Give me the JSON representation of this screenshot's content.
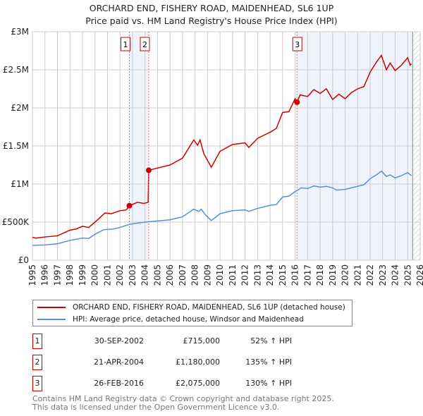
{
  "chart_data": {
    "type": "line",
    "title": "ORCHARD END, FISHERY ROAD, MAIDENHEAD, SL6 1UP",
    "subtitle": "Price paid vs. HM Land Registry's House Price Index (HPI)",
    "xlim": [
      1995,
      2026
    ],
    "ylim": [
      0,
      3000000
    ],
    "yticks": [
      {
        "v": 0,
        "label": "£0"
      },
      {
        "v": 500000,
        "label": "£500K"
      },
      {
        "v": 1000000,
        "label": "£1M"
      },
      {
        "v": 1500000,
        "label": "£1.5M"
      },
      {
        "v": 2000000,
        "label": "£2M"
      },
      {
        "v": 2500000,
        "label": "£2.5M"
      },
      {
        "v": 3000000,
        "label": "£3M"
      }
    ],
    "xticks": [
      "1995",
      "1996",
      "1997",
      "1998",
      "1999",
      "2000",
      "2001",
      "2002",
      "2003",
      "2004",
      "2005",
      "2006",
      "2007",
      "2008",
      "2009",
      "2010",
      "2011",
      "2012",
      "2013",
      "2014",
      "2015",
      "2016",
      "2017",
      "2018",
      "2019",
      "2020",
      "2021",
      "2022",
      "2023",
      "2024",
      "2025",
      "2026"
    ],
    "shaded": [
      [
        2002.75,
        2004.3
      ],
      [
        2016.15,
        2025.4
      ]
    ],
    "hatched_from": 2025.4,
    "series": [
      {
        "name": "ORCHARD END, FISHERY ROAD, MAIDENHEAD, SL6 1UP (detached house)",
        "color": "#cc0000",
        "points": [
          [
            1995,
            300
          ],
          [
            1995.3,
            290
          ],
          [
            1996,
            305
          ],
          [
            1997,
            320
          ],
          [
            1998,
            395
          ],
          [
            1998.5,
            410
          ],
          [
            1999,
            445
          ],
          [
            1999.5,
            430
          ],
          [
            2000,
            500
          ],
          [
            2000.8,
            620
          ],
          [
            2001.3,
            610
          ],
          [
            2002,
            650
          ],
          [
            2002.5,
            660
          ],
          [
            2002.75,
            715
          ],
          [
            2003.4,
            760
          ],
          [
            2003.9,
            745
          ],
          [
            2004.25,
            760
          ],
          [
            2004.3,
            1180
          ],
          [
            2005,
            1210
          ],
          [
            2006,
            1250
          ],
          [
            2007,
            1340
          ],
          [
            2007.9,
            1580
          ],
          [
            2008.2,
            1510
          ],
          [
            2008.4,
            1580
          ],
          [
            2008.7,
            1400
          ],
          [
            2009.3,
            1220
          ],
          [
            2010,
            1430
          ],
          [
            2011,
            1520
          ],
          [
            2012,
            1540
          ],
          [
            2012.3,
            1480
          ],
          [
            2013,
            1600
          ],
          [
            2014,
            1680
          ],
          [
            2014.5,
            1730
          ],
          [
            2015,
            1940
          ],
          [
            2015.5,
            1950
          ],
          [
            2016,
            2120
          ],
          [
            2016.15,
            2075
          ],
          [
            2016.4,
            2170
          ],
          [
            2017,
            2150
          ],
          [
            2017.5,
            2240
          ],
          [
            2018,
            2190
          ],
          [
            2018.5,
            2250
          ],
          [
            2019,
            2110
          ],
          [
            2019.5,
            2180
          ],
          [
            2020,
            2120
          ],
          [
            2020.5,
            2200
          ],
          [
            2021,
            2250
          ],
          [
            2021.5,
            2280
          ],
          [
            2022,
            2470
          ],
          [
            2022.5,
            2600
          ],
          [
            2022.9,
            2690
          ],
          [
            2023.3,
            2500
          ],
          [
            2023.6,
            2590
          ],
          [
            2024,
            2490
          ],
          [
            2024.5,
            2560
          ],
          [
            2025,
            2660
          ],
          [
            2025.2,
            2560
          ],
          [
            2025.3,
            2580
          ]
        ]
      },
      {
        "name": "HPI: Average price, detached house, Windsor and Maidenhead",
        "color": "#5b8fd6",
        "points": [
          [
            1995,
            195
          ],
          [
            1996,
            200
          ],
          [
            1997,
            215
          ],
          [
            1998,
            260
          ],
          [
            1999,
            290
          ],
          [
            1999.5,
            285
          ],
          [
            2000,
            340
          ],
          [
            2000.7,
            400
          ],
          [
            2001.5,
            410
          ],
          [
            2002,
            430
          ],
          [
            2002.75,
            470
          ],
          [
            2003.5,
            490
          ],
          [
            2004,
            500
          ],
          [
            2005,
            515
          ],
          [
            2006,
            530
          ],
          [
            2007,
            570
          ],
          [
            2007.9,
            670
          ],
          [
            2008.3,
            640
          ],
          [
            2008.5,
            670
          ],
          [
            2008.8,
            600
          ],
          [
            2009.3,
            520
          ],
          [
            2010,
            610
          ],
          [
            2011,
            650
          ],
          [
            2012,
            660
          ],
          [
            2012.3,
            640
          ],
          [
            2013,
            680
          ],
          [
            2014,
            720
          ],
          [
            2014.5,
            730
          ],
          [
            2015,
            830
          ],
          [
            2015.5,
            840
          ],
          [
            2016,
            900
          ],
          [
            2016.5,
            950
          ],
          [
            2017,
            940
          ],
          [
            2017.5,
            975
          ],
          [
            2018,
            960
          ],
          [
            2018.5,
            970
          ],
          [
            2019,
            950
          ],
          [
            2019.3,
            920
          ],
          [
            2020,
            930
          ],
          [
            2020.5,
            950
          ],
          [
            2021,
            970
          ],
          [
            2021.5,
            990
          ],
          [
            2022,
            1070
          ],
          [
            2022.5,
            1120
          ],
          [
            2022.9,
            1170
          ],
          [
            2023.3,
            1100
          ],
          [
            2023.6,
            1120
          ],
          [
            2024,
            1080
          ],
          [
            2024.5,
            1110
          ],
          [
            2025,
            1150
          ],
          [
            2025.3,
            1110
          ]
        ]
      }
    ],
    "value_unit_points": "thousands GBP",
    "sales": [
      {
        "n": "1",
        "x": 2002.75,
        "y": 715
      },
      {
        "n": "2",
        "x": 2004.3,
        "y": 1180
      },
      {
        "n": "3",
        "x": 2016.15,
        "y": 2075
      }
    ]
  },
  "transactions": [
    {
      "n": "1",
      "date": "30-SEP-2002",
      "price": "£715,000",
      "hpi": "52% ↑ HPI"
    },
    {
      "n": "2",
      "date": "21-APR-2004",
      "price": "£1,180,000",
      "hpi": "135% ↑ HPI"
    },
    {
      "n": "3",
      "date": "26-FEB-2016",
      "price": "£2,075,000",
      "hpi": "130% ↑ HPI"
    }
  ],
  "footer": {
    "line1": "Contains HM Land Registry data © Crown copyright and database right 2025.",
    "line2": "This data is licensed under the Open Government Licence v3.0."
  }
}
